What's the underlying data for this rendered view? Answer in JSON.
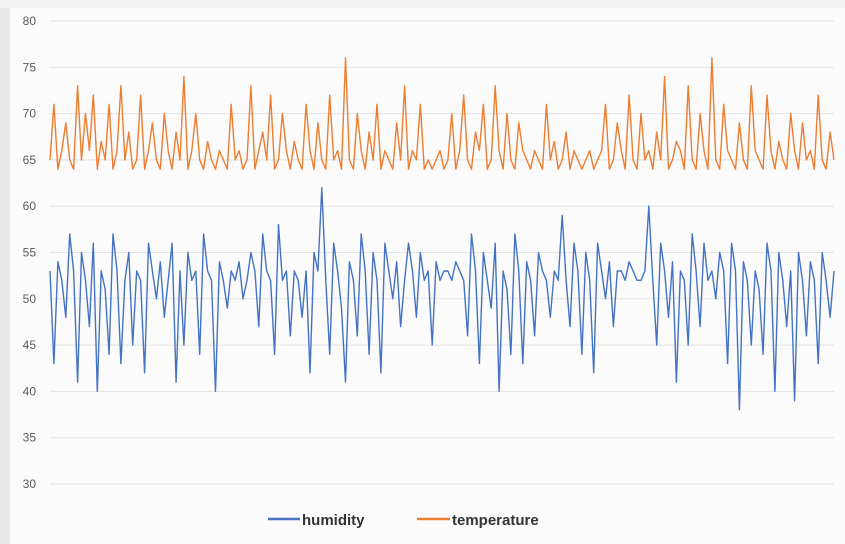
{
  "chart_data": {
    "type": "line",
    "title": "",
    "xlabel": "",
    "ylabel": "",
    "ylim": [
      30,
      80
    ],
    "yticks": [
      30,
      35,
      40,
      45,
      50,
      55,
      60,
      65,
      70,
      75,
      80
    ],
    "grid": true,
    "legend_position": "bottom",
    "x": [
      0,
      1,
      2,
      3,
      4,
      5,
      6,
      7,
      8,
      9,
      10,
      11,
      12,
      13,
      14,
      15,
      16,
      17,
      18,
      19,
      20,
      21,
      22,
      23,
      24,
      25,
      26,
      27,
      28,
      29,
      30,
      31,
      32,
      33,
      34,
      35,
      36,
      37,
      38,
      39,
      40,
      41,
      42,
      43,
      44,
      45,
      46,
      47,
      48,
      49,
      50,
      51,
      52,
      53,
      54,
      55,
      56,
      57,
      58,
      59,
      60,
      61,
      62,
      63,
      64,
      65,
      66,
      67,
      68,
      69,
      70,
      71,
      72,
      73,
      74,
      75,
      76,
      77,
      78,
      79,
      80,
      81,
      82,
      83,
      84,
      85,
      86,
      87,
      88,
      89,
      90,
      91,
      92,
      93,
      94,
      95,
      96,
      97,
      98,
      99,
      100,
      101,
      102,
      103,
      104,
      105,
      106,
      107,
      108,
      109,
      110,
      111,
      112,
      113,
      114,
      115,
      116,
      117,
      118,
      119,
      120,
      121,
      122,
      123,
      124,
      125,
      126,
      127,
      128,
      129,
      130,
      131,
      132,
      133,
      134,
      135,
      136,
      137,
      138,
      139,
      140,
      141,
      142,
      143,
      144,
      145,
      146,
      147,
      148,
      149,
      150,
      151,
      152,
      153,
      154,
      155,
      156,
      157,
      158,
      159,
      160,
      161,
      162,
      163,
      164,
      165,
      166,
      167,
      168,
      169,
      170,
      171,
      172,
      173,
      174,
      175,
      176,
      177,
      178,
      179,
      180,
      181,
      182,
      183,
      184,
      185,
      186,
      187,
      188,
      189,
      190,
      191,
      192,
      193,
      194,
      195,
      196,
      197,
      198,
      199
    ],
    "series": [
      {
        "name": "humidity",
        "color": "#4472c4",
        "values": [
          53,
          43,
          54,
          52,
          48,
          57,
          53,
          41,
          55,
          52,
          47,
          56,
          40,
          53,
          51,
          44,
          57,
          53,
          43,
          52,
          55,
          45,
          53,
          52,
          42,
          56,
          53,
          50,
          54,
          48,
          52,
          56,
          41,
          53,
          45,
          55,
          52,
          53,
          44,
          57,
          53,
          52,
          40,
          54,
          52,
          49,
          53,
          52,
          54,
          50,
          52,
          55,
          53,
          47,
          57,
          53,
          52,
          44,
          58,
          52,
          53,
          46,
          53,
          52,
          48,
          53,
          42,
          55,
          53,
          62,
          52,
          44,
          56,
          53,
          49,
          41,
          54,
          52,
          46,
          57,
          53,
          44,
          55,
          52,
          42,
          56,
          53,
          50,
          54,
          47,
          52,
          56,
          53,
          48,
          55,
          52,
          53,
          45,
          54,
          52,
          53,
          53,
          52,
          54,
          53,
          52,
          46,
          57,
          53,
          43,
          55,
          52,
          49,
          56,
          40,
          53,
          51,
          44,
          57,
          53,
          43,
          54,
          52,
          46,
          55,
          53,
          52,
          48,
          53,
          52,
          59,
          52,
          47,
          56,
          53,
          44,
          55,
          52,
          42,
          56,
          53,
          50,
          54,
          47,
          53,
          53,
          52,
          54,
          53,
          52,
          52,
          53,
          60,
          52,
          45,
          56,
          53,
          48,
          54,
          41,
          53,
          52,
          45,
          57,
          53,
          47,
          56,
          52,
          53,
          50,
          55,
          53,
          43,
          56,
          53,
          38,
          54,
          52,
          45,
          53,
          51,
          44,
          56,
          53,
          40,
          55,
          52,
          47,
          53,
          39,
          55,
          52,
          46,
          54,
          52,
          43,
          55,
          52,
          48,
          53
        ]
      },
      {
        "name": "temperature",
        "color": "#ed7d31",
        "values": [
          65,
          71,
          64,
          66,
          69,
          65,
          64,
          73,
          65,
          70,
          66,
          72,
          64,
          67,
          65,
          71,
          64,
          66,
          73,
          65,
          68,
          64,
          65,
          72,
          64,
          66,
          69,
          65,
          64,
          70,
          66,
          64,
          68,
          65,
          74,
          64,
          66,
          70,
          65,
          64,
          67,
          65,
          64,
          66,
          65,
          64,
          71,
          65,
          66,
          64,
          65,
          73,
          64,
          66,
          68,
          65,
          72,
          64,
          65,
          70,
          66,
          64,
          67,
          65,
          64,
          71,
          66,
          64,
          69,
          65,
          64,
          72,
          65,
          66,
          64,
          76,
          65,
          64,
          70,
          66,
          64,
          68,
          65,
          71,
          64,
          66,
          65,
          64,
          69,
          65,
          73,
          64,
          66,
          65,
          71,
          64,
          65,
          64,
          65,
          66,
          64,
          65,
          70,
          64,
          66,
          72,
          65,
          64,
          68,
          66,
          71,
          64,
          65,
          73,
          66,
          64,
          70,
          65,
          64,
          69,
          66,
          65,
          64,
          66,
          65,
          64,
          71,
          65,
          67,
          64,
          65,
          68,
          64,
          66,
          65,
          64,
          65,
          66,
          64,
          65,
          66,
          71,
          64,
          65,
          69,
          66,
          64,
          72,
          65,
          64,
          70,
          65,
          66,
          64,
          68,
          65,
          74,
          64,
          65,
          67,
          66,
          64,
          73,
          65,
          64,
          70,
          66,
          64,
          76,
          65,
          64,
          71,
          66,
          65,
          64,
          69,
          65,
          64,
          73,
          66,
          65,
          64,
          72,
          66,
          64,
          67,
          65,
          64,
          70,
          66,
          64,
          69,
          65,
          66,
          64,
          72,
          65,
          64,
          68,
          65
        ]
      }
    ]
  }
}
